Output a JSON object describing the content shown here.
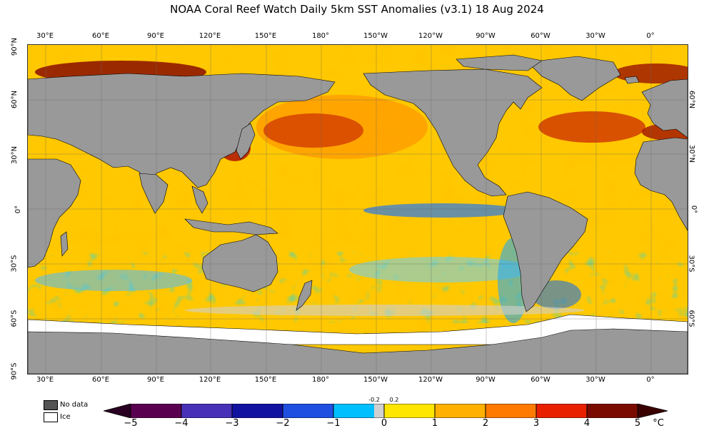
{
  "title": "NOAA Coral Reef Watch Daily 5km SST Anomalies  (v3.1)   18 Aug 2024",
  "lon_labels": [
    "30°E",
    "60°E",
    "90°E",
    "120°E",
    "150°E",
    "180°",
    "150°W",
    "120°W",
    "90°W",
    "60°W",
    "30°W",
    "0°"
  ],
  "lat_labels_left": [
    "90°N",
    "60°N",
    "30°N",
    "0°",
    "30°S",
    "60°S",
    "90°S"
  ],
  "lat_labels_right": [
    "60°N",
    "30°N",
    "0°",
    "30°S",
    "60°S"
  ],
  "legend": {
    "nodata_label": "No data",
    "ice_label": "Ice",
    "nodata_color": "#555555",
    "ice_color": "#ffffff"
  },
  "colorbar": {
    "ticks": [
      "−5",
      "−4",
      "−3",
      "−2",
      "−1",
      "0",
      "1",
      "2",
      "3",
      "4",
      "5"
    ],
    "small_ticks": [
      "-0.2",
      "0.2"
    ],
    "unit": "°C",
    "colors": [
      "#3a0030",
      "#7a007a",
      "#5540c8",
      "#1a1aaa",
      "#1f4fe0",
      "#00bfff",
      "#d0d0d0",
      "#ffe600",
      "#ffb000",
      "#ff7a00",
      "#e82000",
      "#7a0a00"
    ]
  },
  "land_color": "#999999",
  "ocean_base_color": "#ffc800"
}
